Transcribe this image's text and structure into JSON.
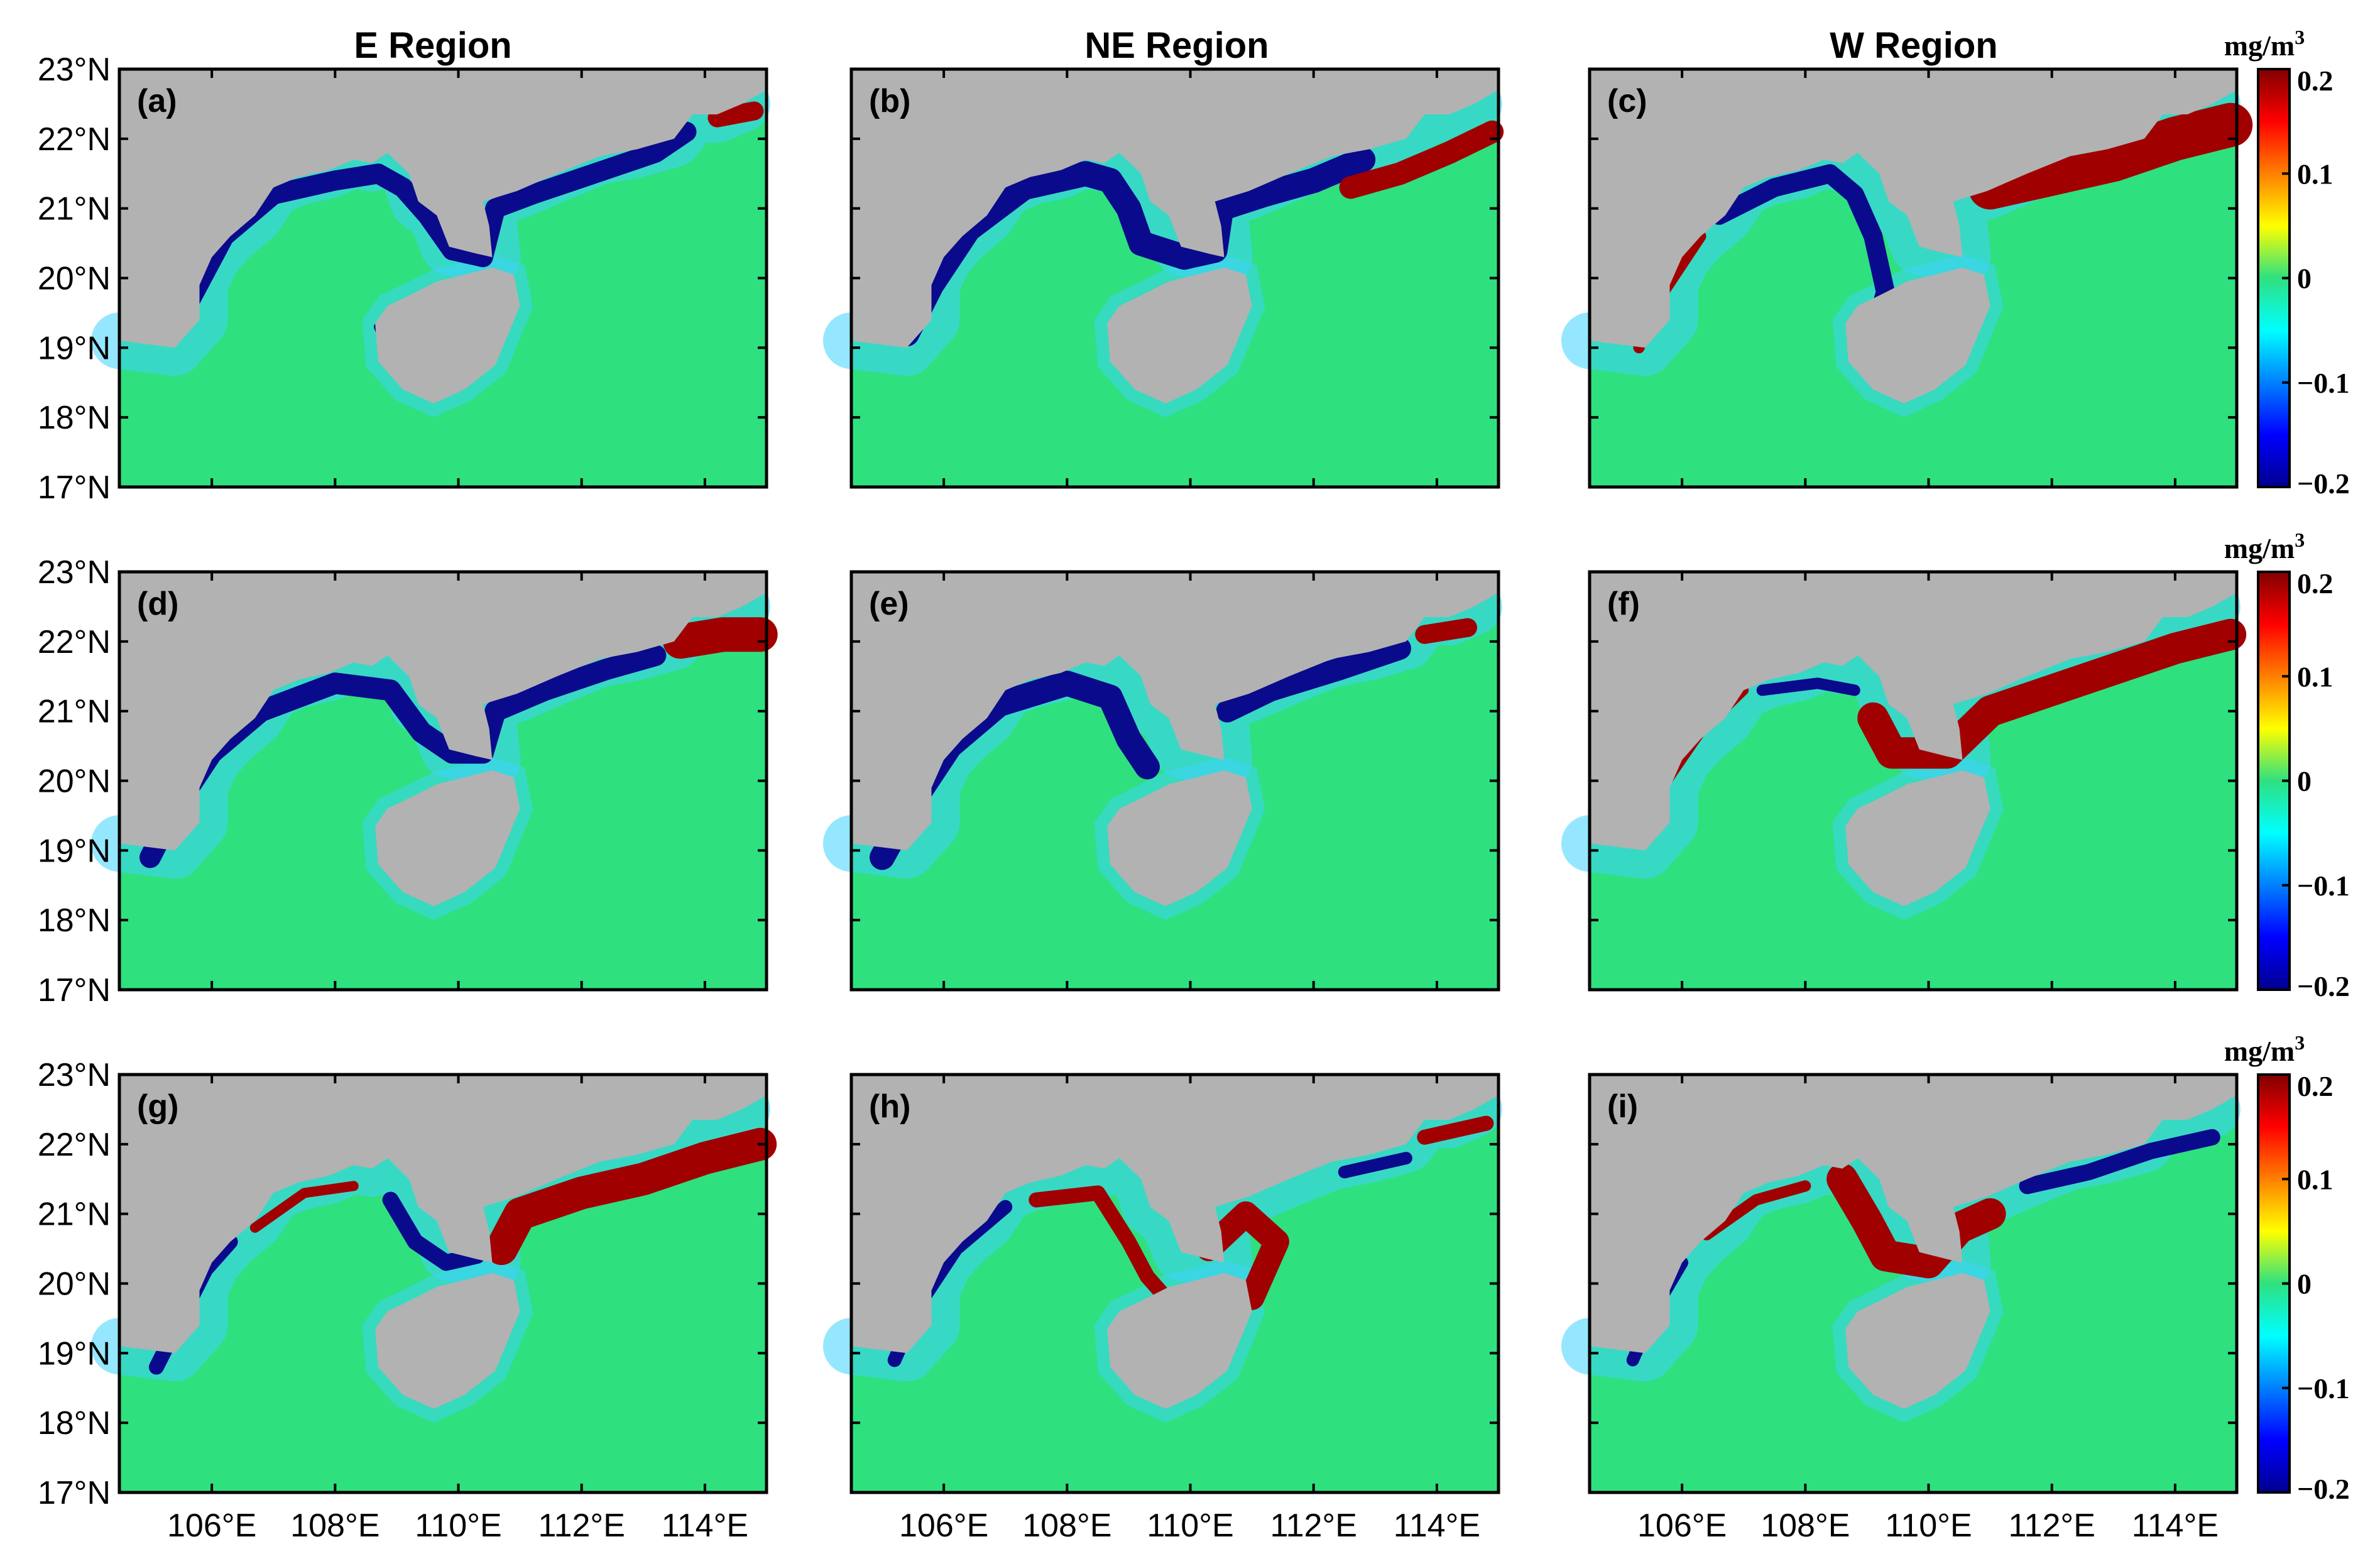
{
  "figure": {
    "column_titles": [
      "E Region",
      "NE Region",
      "W Region"
    ],
    "panel_labels": [
      "(a)",
      "(b)",
      "(c)",
      "(d)",
      "(e)",
      "(f)",
      "(g)",
      "(h)",
      "(i)"
    ],
    "lat_ticks": [
      "23°N",
      "22°N",
      "21°N",
      "20°N",
      "19°N",
      "18°N",
      "17°N"
    ],
    "lon_ticks": [
      "106°E",
      "108°E",
      "110°E",
      "112°E",
      "114°E"
    ],
    "colorbar": {
      "unit": "mg/m",
      "unit_superscript": "3",
      "tick_labels": [
        "0.2",
        "0.1",
        "0",
        "−0.1",
        "−0.2"
      ],
      "range": [
        -0.2,
        0.2
      ],
      "colormap": "jet"
    },
    "colors": {
      "land": "#b2b2b2",
      "ocean_neutral": "#2fe07f",
      "positive_extreme": "#a00000",
      "negative_extreme": "#0a0a8c"
    }
  }
}
